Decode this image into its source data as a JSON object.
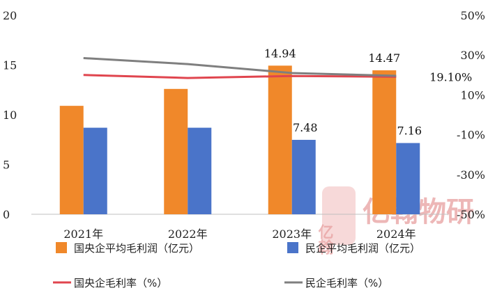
{
  "chart_data": {
    "type": "bar",
    "categories": [
      "2021年",
      "2022年",
      "2023年",
      "2024年"
    ],
    "ylim_left": [
      0,
      20
    ],
    "left_ticks": [
      "0",
      "5",
      "10",
      "15",
      "20"
    ],
    "ylim_right": [
      -50,
      50
    ],
    "right_ticks": [
      "-50%",
      "-30%",
      "-10%",
      "10%",
      "30%",
      "50%"
    ],
    "bar_series": [
      {
        "name": "国央企平均毛利润（亿元）",
        "color": "#F0882A",
        "values": [
          10.9,
          12.6,
          14.94,
          14.47
        ],
        "labels": [
          "",
          "",
          "14.94",
          "14.47"
        ]
      },
      {
        "name": "民企平均毛利润（亿元）",
        "color": "#4A74C9",
        "values": [
          8.7,
          8.7,
          7.48,
          7.16
        ],
        "labels": [
          "",
          "",
          "7.48",
          "7.16"
        ]
      }
    ],
    "line_series": [
      {
        "name": "国央企毛利率（%）",
        "color": "#E0454E",
        "values": [
          20.0,
          18.5,
          19.5,
          19.1
        ],
        "labels": [
          "",
          "",
          "",
          "19.10%"
        ]
      },
      {
        "name": "民企毛利率（%）",
        "color": "#7F7F7F",
        "values": [
          28.5,
          25.5,
          21.0,
          19.6
        ],
        "labels": [
          "",
          "",
          "",
          ""
        ]
      }
    ],
    "legend_position": "bottom",
    "grid": false
  },
  "watermark": {
    "logo_char": "亿翰",
    "text": "亿翰物研"
  }
}
